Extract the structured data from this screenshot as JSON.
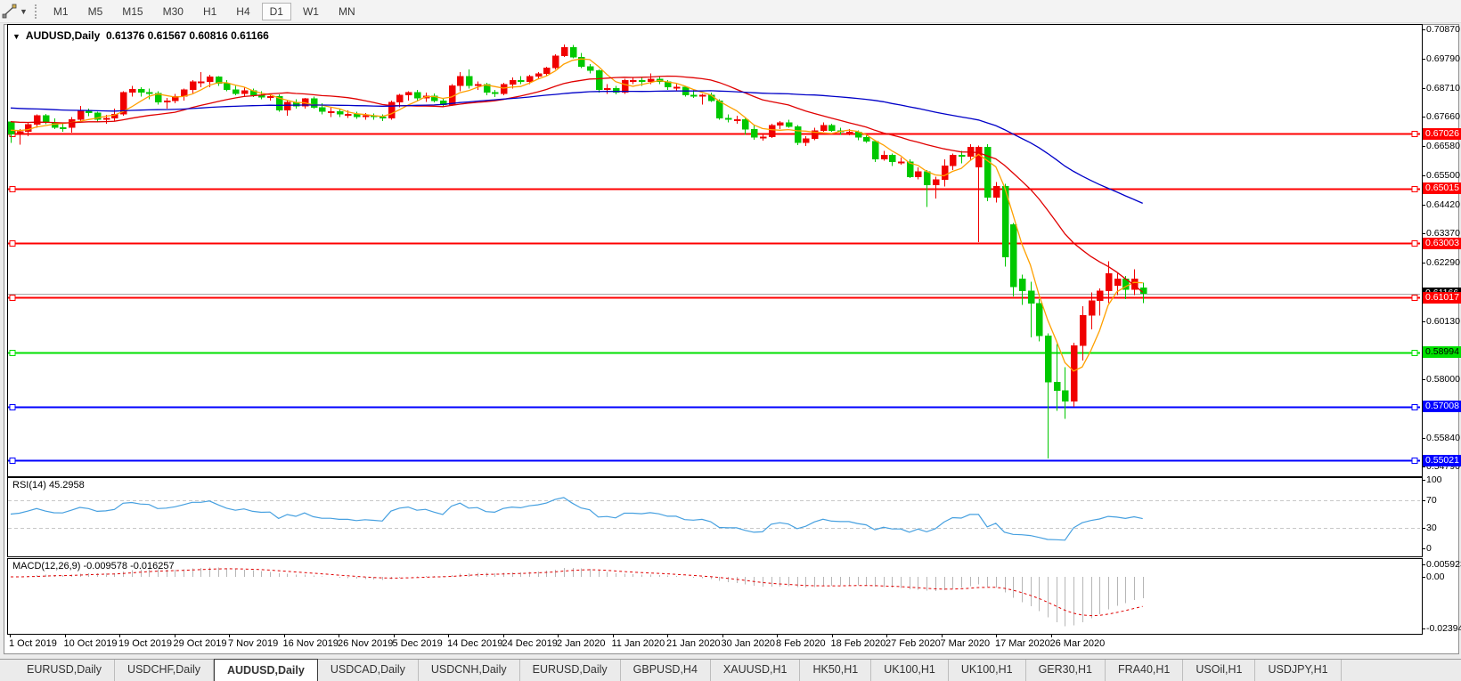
{
  "toolbar": {
    "timeframes": [
      "M1",
      "M5",
      "M15",
      "M30",
      "H1",
      "H4",
      "D1",
      "W1",
      "MN"
    ],
    "active_timeframe": "D1"
  },
  "chart_header": {
    "collapse_glyph": "▼",
    "symbol_label": "AUDUSD,Daily",
    "ohlc_text": "0.61376 0.61567 0.60816 0.61166"
  },
  "price_axis": {
    "ticks": [
      "0.70870",
      "0.69790",
      "0.68710",
      "0.67660",
      "0.66580",
      "0.65500",
      "0.64420",
      "0.63370",
      "0.62290",
      "0.60130",
      "0.58000",
      "0.55840",
      "0.54790"
    ]
  },
  "rsi_panel": {
    "label": "RSI(14) 45.2958",
    "scale": [
      "100",
      "70",
      "30",
      "0"
    ]
  },
  "macd_panel": {
    "label": "MACD(12,26,9) -0.009578 -0.016257",
    "scale": [
      "0.005923",
      "0.00",
      "-0.023944"
    ]
  },
  "date_axis": [
    "1 Oct 2019",
    "10 Oct 2019",
    "19 Oct 2019",
    "29 Oct 2019",
    "7 Nov 2019",
    "16 Nov 2019",
    "26 Nov 2019",
    "5 Dec 2019",
    "14 Dec 2019",
    "24 Dec 2019",
    "2 Jan 2020",
    "11 Jan 2020",
    "21 Jan 2020",
    "30 Jan 2020",
    "8 Feb 2020",
    "18 Feb 2020",
    "27 Feb 2020",
    "7 Mar 2020",
    "17 Mar 2020",
    "26 Mar 2020"
  ],
  "tabs": {
    "items": [
      "EURUSD,Daily",
      "USDCHF,Daily",
      "AUDUSD,Daily",
      "USDCAD,Daily",
      "USDCNH,Daily",
      "EURUSD,Daily",
      "GBPUSD,H4",
      "XAUUSD,H1",
      "HK50,H1",
      "UK100,H1",
      "UK100,H1",
      "GER30,H1",
      "FRA40,H1",
      "USOil,H1",
      "USDJPY,H1"
    ],
    "active_index": 2
  },
  "chart_data": {
    "type": "candlestick",
    "symbol": "AUDUSD",
    "timeframe": "Daily",
    "title": "AUDUSD,Daily 0.61376 0.61567 0.60816 0.61166",
    "y_axis_range": [
      0.5451,
      0.7103
    ],
    "up_color": "#F00000",
    "down_color": "#00C800",
    "current_price": {
      "value": 0.61166,
      "line_color": "#a8a8a8",
      "badge_bg": "#000000",
      "badge_text": "#ffffff"
    },
    "horizontal_levels": [
      {
        "price": "0.67026",
        "value": 0.67026,
        "color": "#FF0000",
        "text_color": "#ffffff"
      },
      {
        "price": "0.65015",
        "value": 0.65015,
        "color": "#FF0000",
        "text_color": "#ffffff"
      },
      {
        "price": "0.63003",
        "value": 0.63003,
        "color": "#FF0000",
        "text_color": "#ffffff"
      },
      {
        "price": "0.61017",
        "value": 0.61017,
        "color": "#FF0000",
        "text_color": "#ffffff"
      },
      {
        "price": "0.58994",
        "value": 0.58994,
        "color": "#00E000",
        "text_color": "#000000"
      },
      {
        "price": "0.57008",
        "value": 0.57008,
        "color": "#0000FF",
        "text_color": "#ffffff"
      },
      {
        "price": "0.55021",
        "value": 0.55021,
        "color": "#0000FF",
        "text_color": "#ffffff"
      }
    ],
    "moving_averages": [
      {
        "period": 5,
        "color": "#FFA000",
        "seed": 0.672
      },
      {
        "period": 20,
        "color": "#E00000",
        "seed": 0.675
      },
      {
        "period": 50,
        "color": "#0000C8",
        "seed": 0.68
      }
    ],
    "rsi": {
      "period": 14,
      "value": 45.2958,
      "color": "#46A0E0",
      "levels": [
        70,
        30
      ],
      "range": [
        0,
        100
      ]
    },
    "macd": {
      "fast": 12,
      "slow": 26,
      "signal": 9,
      "macd_value": -0.009578,
      "signal_value": -0.016257,
      "axis_max": 0.005923,
      "axis_min": -0.023944,
      "histogram_color": "#b6b6b6",
      "signal_color": "#E00000"
    },
    "candles": [
      [
        0.6748,
        0.675,
        0.667,
        0.6702
      ],
      [
        0.6702,
        0.672,
        0.6663,
        0.6712
      ],
      [
        0.6712,
        0.6745,
        0.6695,
        0.6738
      ],
      [
        0.6738,
        0.6775,
        0.6725,
        0.677
      ],
      [
        0.677,
        0.6776,
        0.6738,
        0.6745
      ],
      [
        0.6745,
        0.676,
        0.672,
        0.6727
      ],
      [
        0.6727,
        0.6742,
        0.671,
        0.6726
      ],
      [
        0.6726,
        0.6765,
        0.6708,
        0.6755
      ],
      [
        0.6755,
        0.6805,
        0.675,
        0.679
      ],
      [
        0.679,
        0.6795,
        0.6768,
        0.678
      ],
      [
        0.678,
        0.6785,
        0.6745,
        0.6755
      ],
      [
        0.6755,
        0.6773,
        0.674,
        0.676
      ],
      [
        0.676,
        0.6795,
        0.6752,
        0.6775
      ],
      [
        0.6775,
        0.686,
        0.677,
        0.6855
      ],
      [
        0.6855,
        0.688,
        0.684,
        0.6867
      ],
      [
        0.6867,
        0.6875,
        0.684,
        0.6855
      ],
      [
        0.6855,
        0.687,
        0.683,
        0.6852
      ],
      [
        0.6852,
        0.686,
        0.681,
        0.682
      ],
      [
        0.682,
        0.6835,
        0.6795,
        0.6825
      ],
      [
        0.6825,
        0.685,
        0.6815,
        0.684
      ],
      [
        0.684,
        0.687,
        0.6825,
        0.6865
      ],
      [
        0.6865,
        0.69,
        0.685,
        0.6895
      ],
      [
        0.6895,
        0.693,
        0.6875,
        0.6895
      ],
      [
        0.6895,
        0.692,
        0.6875,
        0.6912
      ],
      [
        0.6912,
        0.6915,
        0.688,
        0.6888
      ],
      [
        0.6888,
        0.69,
        0.686,
        0.6865
      ],
      [
        0.6865,
        0.688,
        0.6845,
        0.685
      ],
      [
        0.685,
        0.6875,
        0.684,
        0.6862
      ],
      [
        0.6862,
        0.687,
        0.6838,
        0.6845
      ],
      [
        0.6845,
        0.686,
        0.683,
        0.6838
      ],
      [
        0.6838,
        0.685,
        0.6825,
        0.684
      ],
      [
        0.684,
        0.6848,
        0.6785,
        0.679
      ],
      [
        0.679,
        0.6825,
        0.677,
        0.682
      ],
      [
        0.682,
        0.683,
        0.6795,
        0.6805
      ],
      [
        0.6805,
        0.6835,
        0.6795,
        0.6832
      ],
      [
        0.6832,
        0.684,
        0.6795,
        0.68
      ],
      [
        0.68,
        0.6815,
        0.6775,
        0.6785
      ],
      [
        0.6785,
        0.68,
        0.6765,
        0.6785
      ],
      [
        0.6785,
        0.6795,
        0.6765,
        0.6775
      ],
      [
        0.6775,
        0.679,
        0.6762,
        0.6775
      ],
      [
        0.6775,
        0.6785,
        0.6758,
        0.6765
      ],
      [
        0.6765,
        0.678,
        0.6755,
        0.677
      ],
      [
        0.677,
        0.6778,
        0.6755,
        0.6765
      ],
      [
        0.6765,
        0.6775,
        0.675,
        0.676
      ],
      [
        0.676,
        0.6825,
        0.6755,
        0.682
      ],
      [
        0.682,
        0.685,
        0.68,
        0.6845
      ],
      [
        0.6845,
        0.686,
        0.6825,
        0.6855
      ],
      [
        0.6855,
        0.6865,
        0.6825,
        0.6835
      ],
      [
        0.6835,
        0.6855,
        0.682,
        0.6842
      ],
      [
        0.6842,
        0.6852,
        0.6818,
        0.6825
      ],
      [
        0.6825,
        0.6835,
        0.68,
        0.681
      ],
      [
        0.681,
        0.6885,
        0.6805,
        0.688
      ],
      [
        0.688,
        0.693,
        0.686,
        0.6915
      ],
      [
        0.6915,
        0.694,
        0.687,
        0.688
      ],
      [
        0.688,
        0.6895,
        0.6865,
        0.6885
      ],
      [
        0.6885,
        0.689,
        0.6845,
        0.6855
      ],
      [
        0.6855,
        0.6865,
        0.6838,
        0.685
      ],
      [
        0.685,
        0.689,
        0.6845,
        0.6885
      ],
      [
        0.6885,
        0.691,
        0.687,
        0.69
      ],
      [
        0.69,
        0.6915,
        0.6885,
        0.6895
      ],
      [
        0.6895,
        0.692,
        0.6885,
        0.6915
      ],
      [
        0.6915,
        0.693,
        0.6905,
        0.6925
      ],
      [
        0.6925,
        0.695,
        0.6915,
        0.6945
      ],
      [
        0.6945,
        0.6995,
        0.694,
        0.699
      ],
      [
        0.699,
        0.7032,
        0.6985,
        0.7021
      ],
      [
        0.7021,
        0.703,
        0.698,
        0.6985
      ],
      [
        0.6985,
        0.7,
        0.6945,
        0.695
      ],
      [
        0.695,
        0.696,
        0.6925,
        0.6935
      ],
      [
        0.6935,
        0.694,
        0.6855,
        0.6865
      ],
      [
        0.6865,
        0.6885,
        0.685,
        0.687
      ],
      [
        0.687,
        0.688,
        0.6848,
        0.6855
      ],
      [
        0.6855,
        0.6905,
        0.685,
        0.69
      ],
      [
        0.69,
        0.6912,
        0.6885,
        0.69
      ],
      [
        0.69,
        0.691,
        0.688,
        0.6895
      ],
      [
        0.6895,
        0.6925,
        0.6885,
        0.6905
      ],
      [
        0.6905,
        0.6915,
        0.6885,
        0.6895
      ],
      [
        0.6895,
        0.69,
        0.6865,
        0.6875
      ],
      [
        0.6875,
        0.6885,
        0.686,
        0.6875
      ],
      [
        0.6875,
        0.688,
        0.684,
        0.6845
      ],
      [
        0.6845,
        0.6865,
        0.6835,
        0.684
      ],
      [
        0.684,
        0.685,
        0.681,
        0.6845
      ],
      [
        0.6845,
        0.6855,
        0.682,
        0.6825
      ],
      [
        0.6825,
        0.683,
        0.6755,
        0.676
      ],
      [
        0.676,
        0.6775,
        0.6745,
        0.6755
      ],
      [
        0.6755,
        0.677,
        0.674,
        0.6755
      ],
      [
        0.6755,
        0.676,
        0.67,
        0.672
      ],
      [
        0.672,
        0.6735,
        0.6682,
        0.669
      ],
      [
        0.669,
        0.6705,
        0.6678,
        0.6692
      ],
      [
        0.6692,
        0.674,
        0.6688,
        0.6735
      ],
      [
        0.6735,
        0.675,
        0.672,
        0.6745
      ],
      [
        0.6745,
        0.6755,
        0.6725,
        0.673
      ],
      [
        0.673,
        0.6735,
        0.6662,
        0.667
      ],
      [
        0.667,
        0.6695,
        0.6658,
        0.6685
      ],
      [
        0.6685,
        0.6725,
        0.668,
        0.6715
      ],
      [
        0.6715,
        0.6745,
        0.671,
        0.6735
      ],
      [
        0.6735,
        0.674,
        0.671,
        0.6715
      ],
      [
        0.6715,
        0.6725,
        0.67,
        0.671
      ],
      [
        0.671,
        0.672,
        0.6698,
        0.671
      ],
      [
        0.671,
        0.6715,
        0.668,
        0.669
      ],
      [
        0.669,
        0.67,
        0.667,
        0.6675
      ],
      [
        0.6675,
        0.668,
        0.66,
        0.661
      ],
      [
        0.661,
        0.664,
        0.6605,
        0.6625
      ],
      [
        0.6625,
        0.663,
        0.6585,
        0.66
      ],
      [
        0.66,
        0.6615,
        0.659,
        0.66
      ],
      [
        0.66,
        0.661,
        0.654,
        0.6545
      ],
      [
        0.6545,
        0.658,
        0.6535,
        0.6565
      ],
      [
        0.6565,
        0.657,
        0.6434,
        0.6515
      ],
      [
        0.6515,
        0.6545,
        0.6465,
        0.6535
      ],
      [
        0.6535,
        0.661,
        0.651,
        0.6585
      ],
      [
        0.6585,
        0.663,
        0.657,
        0.6625
      ],
      [
        0.6625,
        0.664,
        0.6595,
        0.662
      ],
      [
        0.662,
        0.6665,
        0.6605,
        0.6655
      ],
      [
        0.658,
        0.666,
        0.6305,
        0.6655
      ],
      [
        0.6655,
        0.6665,
        0.6455,
        0.647
      ],
      [
        0.647,
        0.6525,
        0.645,
        0.651
      ],
      [
        0.651,
        0.652,
        0.6215,
        0.625
      ],
      [
        0.637,
        0.6375,
        0.6105,
        0.614
      ],
      [
        0.617,
        0.6185,
        0.6075,
        0.6125
      ],
      [
        0.6125,
        0.616,
        0.5955,
        0.608
      ],
      [
        0.608,
        0.6095,
        0.594,
        0.596
      ],
      [
        0.596,
        0.597,
        0.551,
        0.579
      ],
      [
        0.579,
        0.593,
        0.5685,
        0.576
      ],
      [
        0.576,
        0.5845,
        0.5655,
        0.572
      ],
      [
        0.572,
        0.5935,
        0.57,
        0.5925
      ],
      [
        0.5925,
        0.607,
        0.587,
        0.6035
      ],
      [
        0.6035,
        0.612,
        0.5985,
        0.609
      ],
      [
        0.609,
        0.6135,
        0.6035,
        0.6125
      ],
      [
        0.6125,
        0.6235,
        0.608,
        0.619
      ],
      [
        0.6145,
        0.619,
        0.611,
        0.617
      ],
      [
        0.617,
        0.618,
        0.6095,
        0.613
      ],
      [
        0.613,
        0.6205,
        0.611,
        0.617
      ],
      [
        0.61376,
        0.61567,
        0.60816,
        0.61166
      ]
    ]
  }
}
